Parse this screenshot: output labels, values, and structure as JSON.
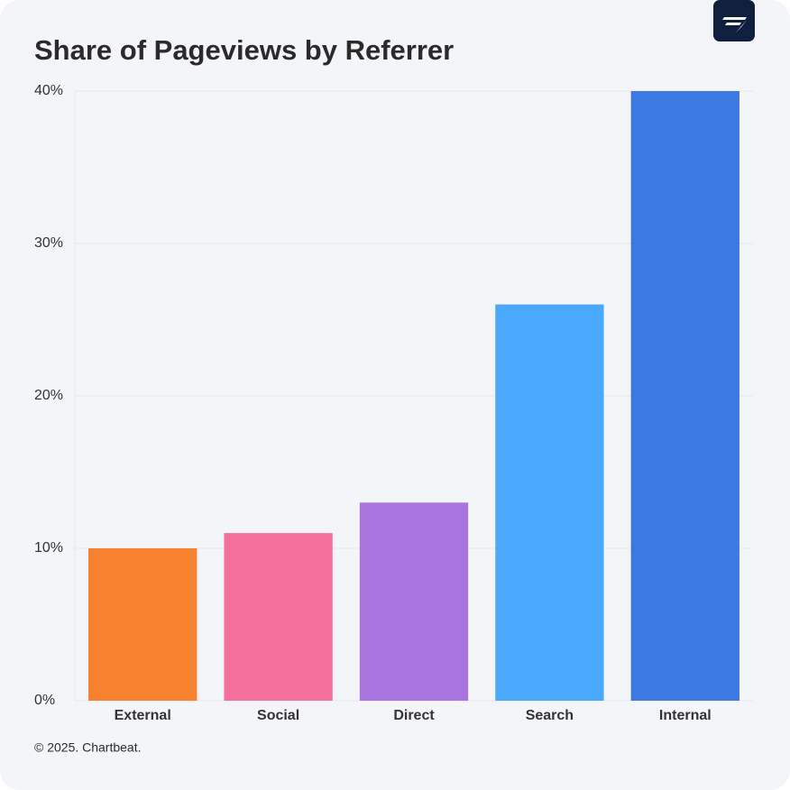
{
  "chart_data": {
    "type": "bar",
    "title": "Share of Pageviews by Referrer",
    "categories": [
      "External",
      "Social",
      "Direct",
      "Search",
      "Internal"
    ],
    "values": [
      10,
      11,
      13,
      26,
      40
    ],
    "colors": [
      "#f8812f",
      "#f5709c",
      "#a974e0",
      "#4aa8fd",
      "#3d79e2"
    ],
    "ylim": [
      0,
      40
    ],
    "yticks": [
      {
        "value": 0,
        "label": "0%"
      },
      {
        "value": 10,
        "label": "10%"
      },
      {
        "value": 20,
        "label": "20%"
      },
      {
        "value": 30,
        "label": "30%"
      },
      {
        "value": 40,
        "label": "40%"
      }
    ],
    "grid": true,
    "footer": "© 2025. Chartbeat."
  }
}
